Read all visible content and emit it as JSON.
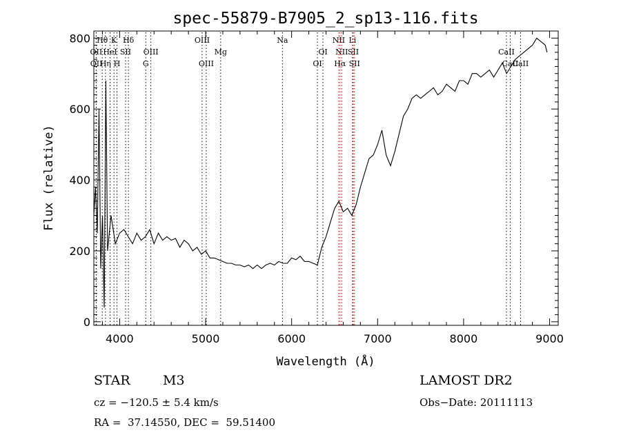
{
  "chart_data": {
    "type": "line",
    "title": "spec-55879-B7905_2_sp13-116.fits",
    "xlabel": "Wavelength (Å)",
    "ylabel": "Flux (relative)",
    "xlim": [
      3700,
      9100
    ],
    "ylim": [
      -10,
      820
    ],
    "x_ticks": [
      4000,
      5000,
      6000,
      7000,
      8000,
      9000
    ],
    "y_ticks": [
      0,
      200,
      400,
      600,
      800
    ],
    "grid": false,
    "legend": "none",
    "series": [
      {
        "x": [
          3700,
          3720,
          3740,
          3760,
          3780,
          3800,
          3820,
          3840,
          3860,
          3880,
          3900,
          3950,
          4000,
          4050,
          4100,
          4150,
          4200,
          4250,
          4300,
          4350,
          4400,
          4450,
          4500,
          4550,
          4600,
          4650,
          4700,
          4750,
          4800,
          4850,
          4900,
          4950,
          5000,
          5050,
          5100,
          5150,
          5200,
          5250,
          5300,
          5350,
          5400,
          5450,
          5500,
          5550,
          5600,
          5650,
          5700,
          5750,
          5800,
          5850,
          5900,
          5950,
          6000,
          6050,
          6100,
          6150,
          6200,
          6250,
          6300,
          6350,
          6400,
          6450,
          6500,
          6550,
          6600,
          6650,
          6700,
          6750,
          6800,
          6850,
          6900,
          6950,
          7000,
          7050,
          7100,
          7150,
          7200,
          7250,
          7300,
          7350,
          7400,
          7450,
          7500,
          7550,
          7600,
          7650,
          7700,
          7750,
          7800,
          7850,
          7900,
          7950,
          8000,
          8050,
          8100,
          8150,
          8200,
          8250,
          8300,
          8350,
          8400,
          8450,
          8500,
          8550,
          8600,
          8650,
          8700,
          8750,
          8800,
          8850,
          8900,
          8950,
          8970
        ],
        "y": [
          300,
          380,
          250,
          600,
          150,
          300,
          40,
          680,
          200,
          250,
          300,
          220,
          250,
          260,
          240,
          220,
          250,
          230,
          240,
          260,
          220,
          250,
          230,
          240,
          230,
          235,
          210,
          230,
          220,
          200,
          210,
          190,
          200,
          180,
          180,
          175,
          170,
          165,
          165,
          160,
          160,
          155,
          160,
          150,
          160,
          150,
          160,
          165,
          160,
          170,
          165,
          165,
          180,
          175,
          185,
          170,
          170,
          165,
          160,
          210,
          240,
          280,
          320,
          340,
          310,
          320,
          300,
          330,
          380,
          420,
          460,
          470,
          500,
          540,
          470,
          440,
          480,
          530,
          580,
          600,
          630,
          640,
          630,
          640,
          650,
          660,
          640,
          650,
          670,
          660,
          650,
          680,
          680,
          670,
          700,
          700,
          690,
          700,
          710,
          690,
          710,
          730,
          700,
          720,
          740,
          750,
          760,
          770,
          780,
          800,
          790,
          780,
          760
        ]
      }
    ],
    "line_markers": [
      {
        "label": "Hθ",
        "x": 3798,
        "row": 0,
        "color": "#000000"
      },
      {
        "label": "K",
        "x": 3934,
        "row": 0,
        "color": "#000000"
      },
      {
        "label": "Hδ",
        "x": 4102,
        "row": 0,
        "color": "#000000"
      },
      {
        "label": "OII",
        "x": 3727,
        "row": 1,
        "color": "#000000"
      },
      {
        "label": "HeI",
        "x": 3889,
        "row": 1,
        "color": "#000000"
      },
      {
        "label": "SII",
        "x": 4069,
        "row": 1,
        "color": "#000000"
      },
      {
        "label": "OIII",
        "x": 4363,
        "row": 1,
        "color": "#000000"
      },
      {
        "label": "OII",
        "x": 3729,
        "row": 2,
        "color": "#000000"
      },
      {
        "label": "Hη",
        "x": 3835,
        "row": 2,
        "color": "#000000"
      },
      {
        "label": "H",
        "x": 3969,
        "row": 2,
        "color": "#000000"
      },
      {
        "label": "G",
        "x": 4304,
        "row": 2,
        "color": "#000000"
      },
      {
        "label": "OIII",
        "x": 4959,
        "row": 0,
        "color": "#000000"
      },
      {
        "label": "Mg",
        "x": 5175,
        "row": 1,
        "color": "#000000"
      },
      {
        "label": "OIII",
        "x": 5007,
        "row": 2,
        "color": "#000000"
      },
      {
        "label": "Na",
        "x": 5893,
        "row": 0,
        "color": "#000000"
      },
      {
        "label": "OI",
        "x": 6364,
        "row": 1,
        "color": "#000000"
      },
      {
        "label": "OI",
        "x": 6300,
        "row": 2,
        "color": "#000000"
      },
      {
        "label": "NII",
        "x": 6548,
        "row": 0,
        "color": "#cc0000"
      },
      {
        "label": "Li",
        "x": 6708,
        "row": 0,
        "color": "#000000"
      },
      {
        "label": "NII",
        "x": 6583,
        "row": 1,
        "color": "#cc0000"
      },
      {
        "label": "SII",
        "x": 6717,
        "row": 1,
        "color": "#cc0000"
      },
      {
        "label": "Hα",
        "x": 6563,
        "row": 2,
        "color": "#cc0000"
      },
      {
        "label": "SII",
        "x": 6731,
        "row": 2,
        "color": "#cc0000"
      },
      {
        "label": "CaII",
        "x": 8498,
        "row": 1,
        "color": "#000000"
      },
      {
        "label": "CaII",
        "x": 8542,
        "row": 2,
        "color": "#000000"
      },
      {
        "label": "CaII",
        "x": 8662,
        "row": 2,
        "color": "#000000"
      }
    ]
  },
  "info": {
    "object_type": "STAR",
    "subclass": "M3",
    "survey": "LAMOST DR2",
    "redshift": "cz = −120.5 ± 5.4 km/s",
    "obs_date": "Obs−Date: 20111113",
    "coords": "RA =  37.14550, DEC =  59.51400"
  }
}
